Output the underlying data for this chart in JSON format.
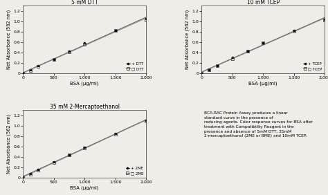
{
  "bsa_x": [
    0,
    125,
    250,
    500,
    750,
    1000,
    1500,
    2000
  ],
  "dtt_with": [
    0.0,
    0.06,
    0.14,
    0.27,
    0.42,
    0.58,
    0.83,
    1.05
  ],
  "dtt_without": [
    0.0,
    0.05,
    0.13,
    0.26,
    0.41,
    0.56,
    0.82,
    1.03
  ],
  "tcep_with": [
    0.0,
    0.07,
    0.15,
    0.3,
    0.43,
    0.59,
    0.82,
    1.04
  ],
  "tcep_without": [
    0.0,
    0.06,
    0.14,
    0.28,
    0.42,
    0.58,
    0.81,
    1.03
  ],
  "me_with": [
    0.0,
    0.08,
    0.16,
    0.3,
    0.44,
    0.58,
    0.85,
    1.1
  ],
  "me_without": [
    0.0,
    0.06,
    0.14,
    0.29,
    0.43,
    0.57,
    0.84,
    1.09
  ],
  "title_dtt": "5 mM DTT",
  "title_tcep": "10 mM TCEP",
  "title_me": "35 mM 2-Mercaptoethanol",
  "ylabel": "Net Absorbance (562 nm)",
  "xlabel": "BSA (µg/ml)",
  "legend_dtt": [
    "+ DTT",
    "□ DTT"
  ],
  "legend_tcep": [
    "+ TCEP",
    "□ TCEP"
  ],
  "legend_me": [
    "+ 2ME",
    "□ 2ME"
  ],
  "text_block": "BCA-RAC Protein Assay produces a linear\nstandard curve in the presence of\nreducing agents. Color response curves for BSA after\ntreatment with Compatibility Reagent in the\npresence and absence of 5mM DTT, 35mM\n2-mercaptoethanol (2ME or BME) and 10mM TCEP.",
  "ylim": [
    0,
    1.3
  ],
  "xlim": [
    0,
    2000
  ],
  "xticks": [
    0,
    500,
    1000,
    1500,
    2000
  ],
  "yticks": [
    0,
    0.2,
    0.4,
    0.6,
    0.8,
    1.0,
    1.2
  ],
  "line_color_dark": "#555555",
  "line_color_light": "#888888",
  "bg_color": "#f0ece8",
  "fig_bg": "#f0ece8"
}
